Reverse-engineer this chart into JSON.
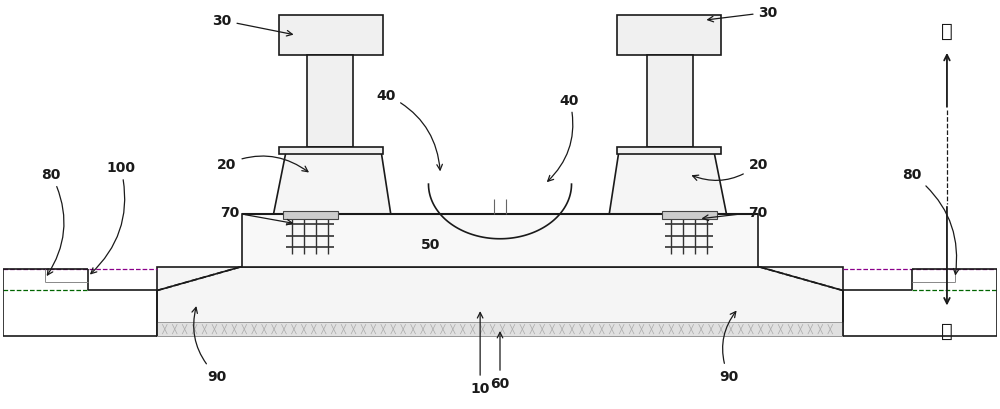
{
  "bg_color": "#ffffff",
  "line_color": "#1a1a1a",
  "dark": "#111111",
  "gray": "#777777",
  "purple": "#8B008B",
  "green": "#006400",
  "fig_width": 10.0,
  "fig_height": 4.1,
  "dpi": 100
}
